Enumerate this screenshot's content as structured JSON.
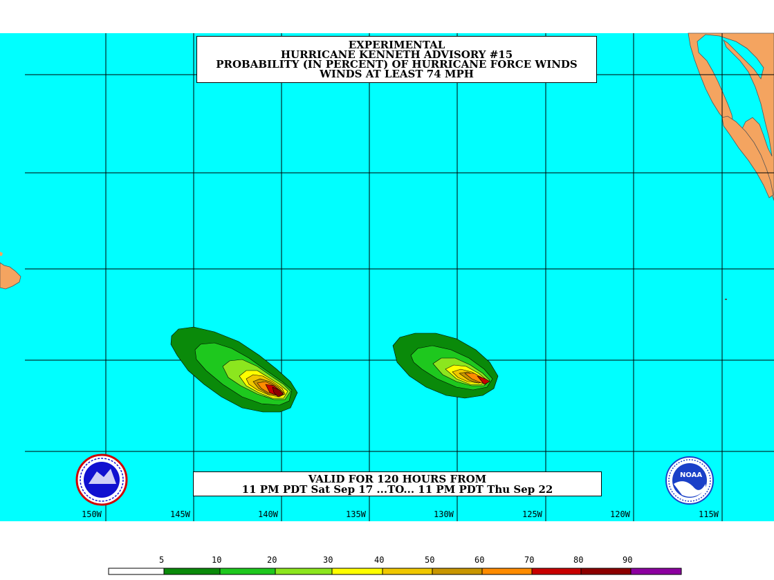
{
  "title": {
    "line1": "EXPERIMENTAL",
    "line2": "HURRICANE KENNETH ADVISORY #15",
    "line3": "PROBABILITY (IN PERCENT) OF HURRICANE FORCE WINDS",
    "line4": "WINDS AT LEAST 74 MPH"
  },
  "valid": {
    "line1": "VALID FOR 120 HOURS FROM",
    "line2": "11 PM PDT Sat Sep 17 ...TO... 11 PM PDT Thu Sep 22"
  },
  "longitude_labels": [
    "150W",
    "145W",
    "140W",
    "135W",
    "130W",
    "125W",
    "120W",
    "115W"
  ],
  "legend": {
    "thresholds": [
      "5",
      "10",
      "20",
      "30",
      "40",
      "50",
      "60",
      "70",
      "80",
      "90"
    ],
    "colors": [
      "#ffffff",
      "#0a8a0a",
      "#1ec81e",
      "#8ce61e",
      "#ffff00",
      "#f0c800",
      "#c89600",
      "#ff8c00",
      "#c80000",
      "#8c0000",
      "#8c00a0"
    ]
  },
  "colors": {
    "ocean": "#00ffff",
    "land": "#f4a460",
    "grid": "#000000"
  },
  "logos": {
    "left": "nws-logo",
    "right": "noaa-logo",
    "right_text": "NOAA"
  }
}
